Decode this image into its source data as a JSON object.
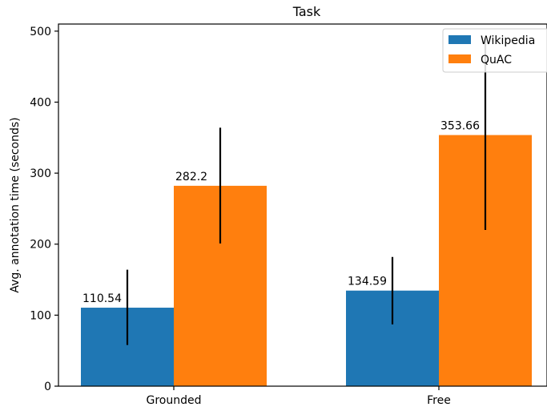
{
  "chart_data": {
    "type": "bar",
    "title": "Task",
    "xlabel": "",
    "ylabel": "Avg. annotation time (seconds)",
    "categories": [
      "Grounded",
      "Free"
    ],
    "ylim": [
      0,
      510
    ],
    "yticks": [
      0,
      100,
      200,
      300,
      400,
      500
    ],
    "grid": false,
    "legend_position": "top-right",
    "series": [
      {
        "name": "Wikipedia",
        "color": "#1f77b4",
        "values": [
          110.54,
          134.59
        ],
        "labels": [
          "110.54",
          "134.59"
        ],
        "error_ranges": [
          [
            58,
            164
          ],
          [
            87,
            182
          ]
        ]
      },
      {
        "name": "QuAC",
        "color": "#ff7f0e",
        "values": [
          282.2,
          353.66
        ],
        "labels": [
          "282.2",
          "353.66"
        ],
        "error_ranges": [
          [
            201,
            364
          ],
          [
            220,
            490
          ]
        ]
      }
    ]
  }
}
